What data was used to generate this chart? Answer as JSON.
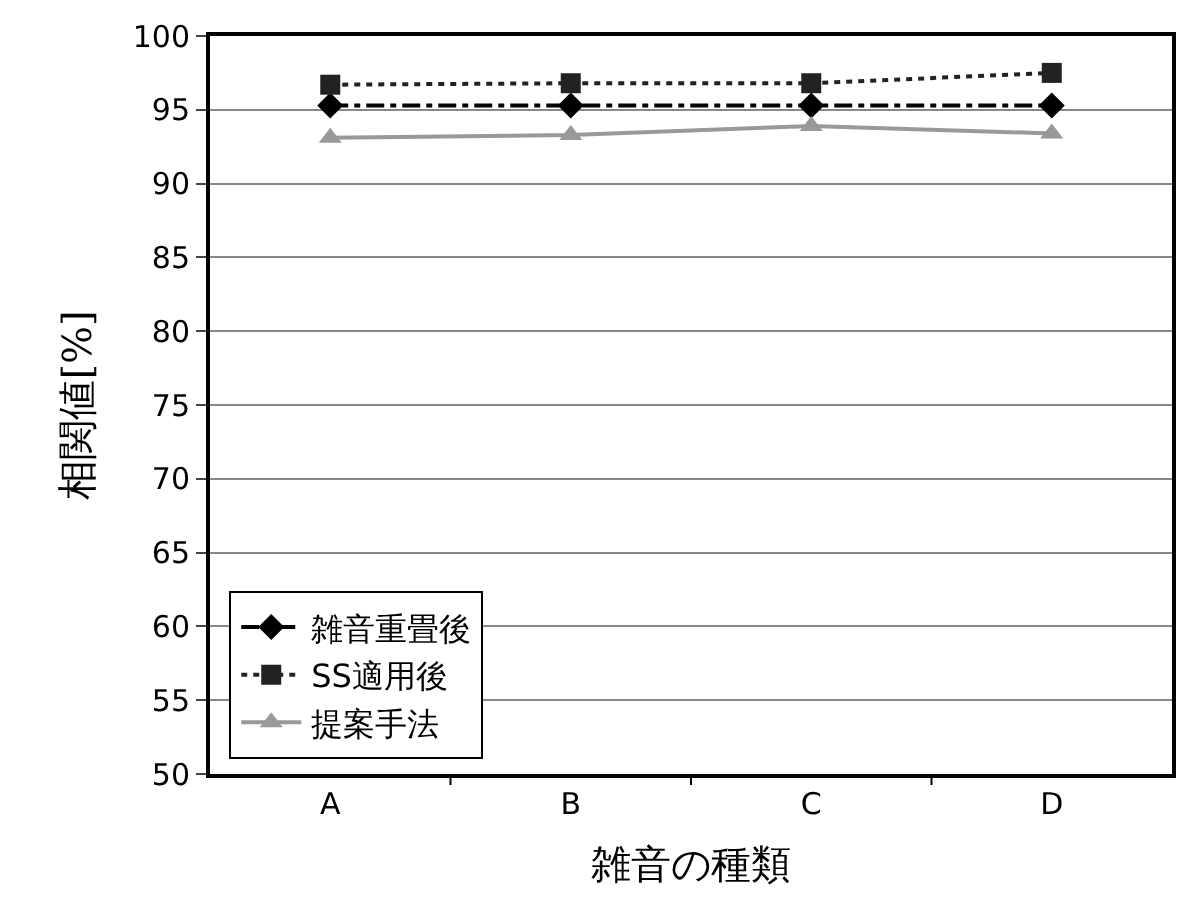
{
  "chart_data": {
    "type": "line",
    "xlabel": "雑音の種類",
    "ylabel": "相関値[%]",
    "categories": [
      "A",
      "B",
      "C",
      "D"
    ],
    "series": [
      {
        "name": "雑音重畳後",
        "color": "#000000",
        "values": [
          95.3,
          95.3,
          95.3,
          95.3
        ],
        "marker": "diamond",
        "line_style": "dashdot"
      },
      {
        "name": "SS適用後",
        "color": "#222222",
        "values": [
          96.7,
          96.8,
          96.8,
          97.5
        ],
        "marker": "square",
        "line_style": "dotted"
      },
      {
        "name": "提案手法",
        "color": "#999999",
        "values": [
          93.1,
          93.3,
          93.9,
          93.4
        ],
        "marker": "triangle",
        "line_style": "solid"
      }
    ],
    "ylim": [
      50,
      100
    ],
    "yticks": [
      50,
      55,
      60,
      65,
      70,
      75,
      80,
      85,
      90,
      95,
      100
    ],
    "grid": "y",
    "legend": "bottom left"
  }
}
